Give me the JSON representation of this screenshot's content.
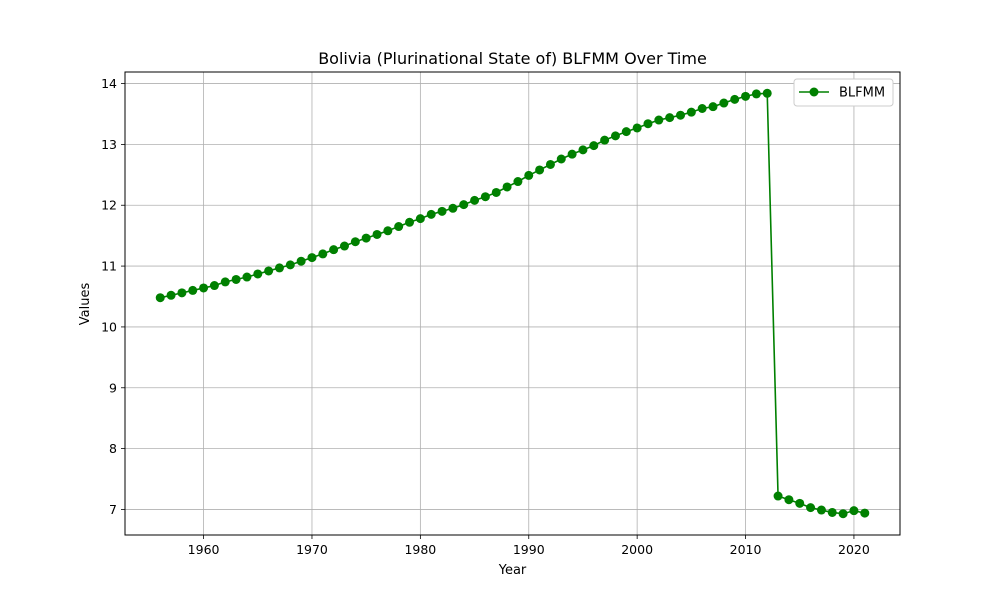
{
  "chart_data": {
    "type": "line",
    "title": "Bolivia (Plurinational State of) BLFMM Over Time",
    "xlabel": "Year",
    "ylabel": "Values",
    "xlim": [
      1952.75,
      2024.25
    ],
    "ylim": [
      6.58,
      14.19
    ],
    "xticks": [
      1960,
      1970,
      1980,
      1990,
      2000,
      2010,
      2020
    ],
    "yticks": [
      7,
      8,
      9,
      10,
      11,
      12,
      13,
      14
    ],
    "grid": true,
    "legend_position": "top-right",
    "series": [
      {
        "name": "BLFMM",
        "color": "#008000",
        "marker": "circle",
        "x": [
          1956,
          1957,
          1958,
          1959,
          1960,
          1961,
          1962,
          1963,
          1964,
          1965,
          1966,
          1967,
          1968,
          1969,
          1970,
          1971,
          1972,
          1973,
          1974,
          1975,
          1976,
          1977,
          1978,
          1979,
          1980,
          1981,
          1982,
          1983,
          1984,
          1985,
          1986,
          1987,
          1988,
          1989,
          1990,
          1991,
          1992,
          1993,
          1994,
          1995,
          1996,
          1997,
          1998,
          1999,
          2000,
          2001,
          2002,
          2003,
          2004,
          2005,
          2006,
          2007,
          2008,
          2009,
          2010,
          2011,
          2012,
          2013,
          2014,
          2015,
          2016,
          2017,
          2018,
          2019,
          2020,
          2021
        ],
        "y": [
          10.48,
          10.52,
          10.56,
          10.6,
          10.64,
          10.68,
          10.74,
          10.78,
          10.82,
          10.87,
          10.92,
          10.97,
          11.02,
          11.08,
          11.14,
          11.2,
          11.27,
          11.33,
          11.4,
          11.46,
          11.52,
          11.58,
          11.65,
          11.72,
          11.78,
          11.85,
          11.9,
          11.95,
          12.01,
          12.08,
          12.14,
          12.21,
          12.3,
          12.39,
          12.49,
          12.58,
          12.67,
          12.76,
          12.84,
          12.91,
          12.98,
          13.07,
          13.14,
          13.21,
          13.27,
          13.34,
          13.4,
          13.44,
          13.48,
          13.53,
          13.59,
          13.62,
          13.68,
          13.74,
          13.79,
          13.83,
          13.84,
          7.22,
          7.16,
          7.1,
          7.03,
          6.99,
          6.95,
          6.93,
          6.98,
          6.94
        ]
      }
    ]
  }
}
